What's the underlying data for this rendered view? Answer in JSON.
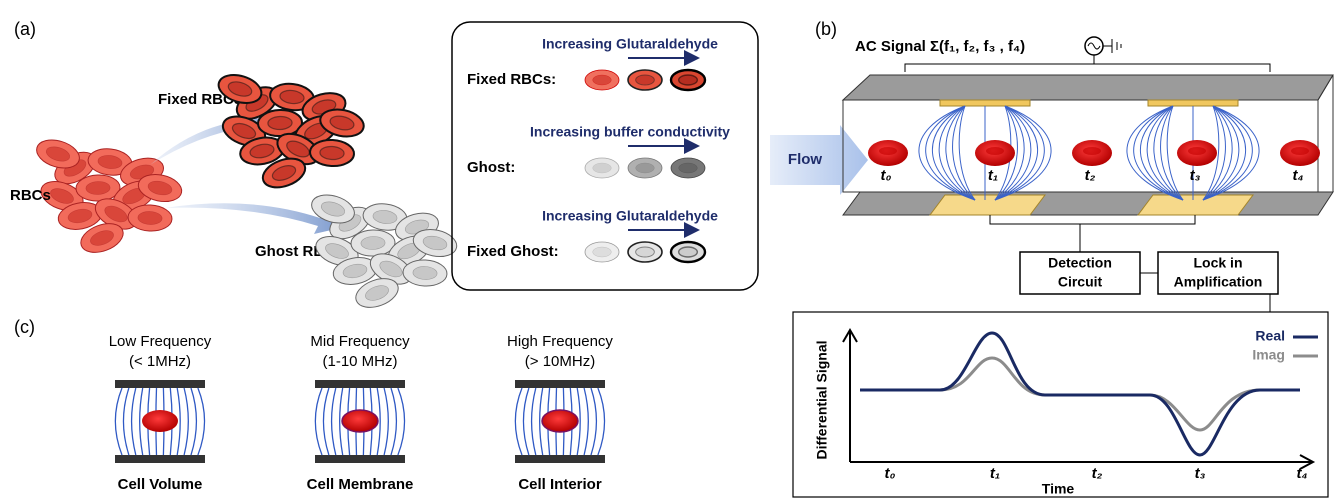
{
  "panel_a": {
    "label": "(a)",
    "rbcs": "RBCs",
    "fixed_rbcs": "Fixed RBCs",
    "ghost_rbcs": "Ghost RBCs",
    "legend": [
      {
        "arrow_label": "Increasing Glutaraldehyde",
        "name": "Fixed RBCs:"
      },
      {
        "arrow_label": "Increasing buffer conductivity",
        "name": "Ghost:"
      },
      {
        "arrow_label": "Increasing Glutaraldehyde",
        "name": "Fixed Ghost:"
      }
    ]
  },
  "flow": "Flow",
  "panel_b": {
    "label": "(b)",
    "signal": "AC Signal Σ(f₁, f₂, f₃ , f₄)",
    "times": [
      "t₀",
      "t₁",
      "t₂",
      "t₃",
      "t₄"
    ],
    "detection": [
      "Detection",
      "Circuit"
    ],
    "lockin": [
      "Lock in",
      "Amplification"
    ],
    "plot": {
      "y_label": "Differential Signal",
      "x_label": "Time",
      "x_labels": [
        "t₀",
        "t₁",
        "t₂",
        "t₃",
        "t₄"
      ],
      "legend": [
        "Real",
        "Imag"
      ]
    }
  },
  "panel_c": {
    "label": "(c)",
    "columns": [
      {
        "title": "Low Frequency",
        "range": "(< 1MHz)",
        "caption": "Cell Volume"
      },
      {
        "title": "Mid Frequency",
        "range": "(1-10 MHz)",
        "caption": "Cell Membrane"
      },
      {
        "title": "High Frequency",
        "range": "(> 10MHz)",
        "caption": "Cell Interior"
      }
    ]
  }
}
